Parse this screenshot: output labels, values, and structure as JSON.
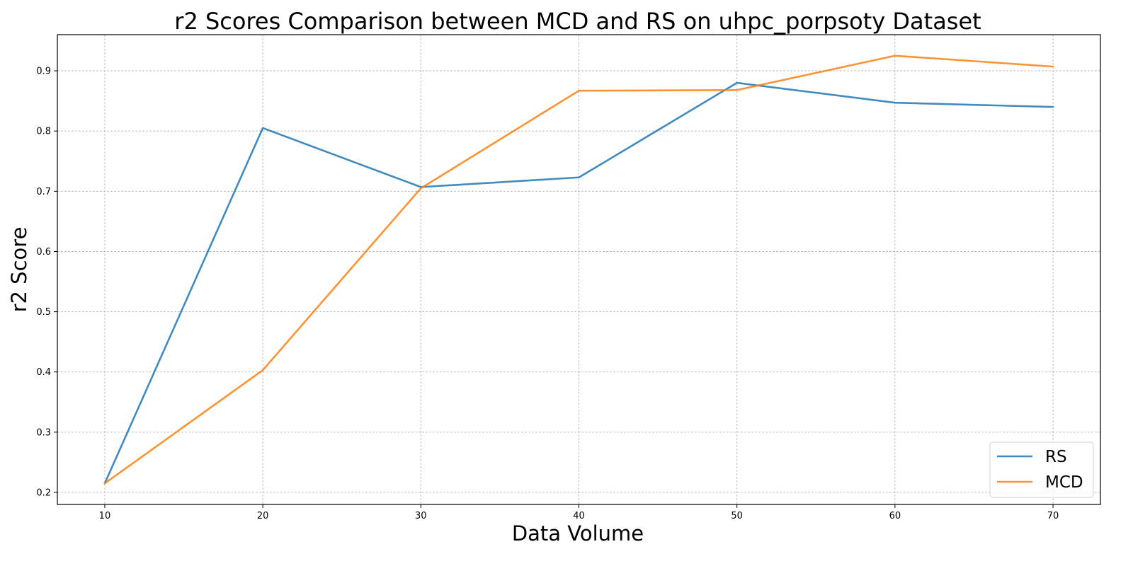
{
  "chart_data": {
    "type": "line",
    "title": "r2 Scores Comparison between MCD and RS on uhpc_porpsoty Dataset",
    "xlabel": "Data Volume",
    "ylabel": "r2 Score",
    "x": [
      10,
      20,
      30,
      40,
      50,
      60,
      70
    ],
    "xticks": [
      "10",
      "20",
      "30",
      "40",
      "50",
      "60",
      "70"
    ],
    "yticks": [
      "0.2",
      "0.3",
      "0.4",
      "0.5",
      "0.6",
      "0.7",
      "0.8",
      "0.9"
    ],
    "xlim": [
      7,
      73
    ],
    "ylim": [
      0.18,
      0.96
    ],
    "grid": true,
    "legend_position": "bottom-right",
    "series": [
      {
        "name": "RS",
        "color": "#1f77b4",
        "values": [
          0.215,
          0.805,
          0.707,
          0.723,
          0.88,
          0.847,
          0.84
        ]
      },
      {
        "name": "MCD",
        "color": "#ff7f0e",
        "values": [
          0.215,
          0.403,
          0.705,
          0.867,
          0.868,
          0.925,
          0.907
        ]
      }
    ]
  }
}
